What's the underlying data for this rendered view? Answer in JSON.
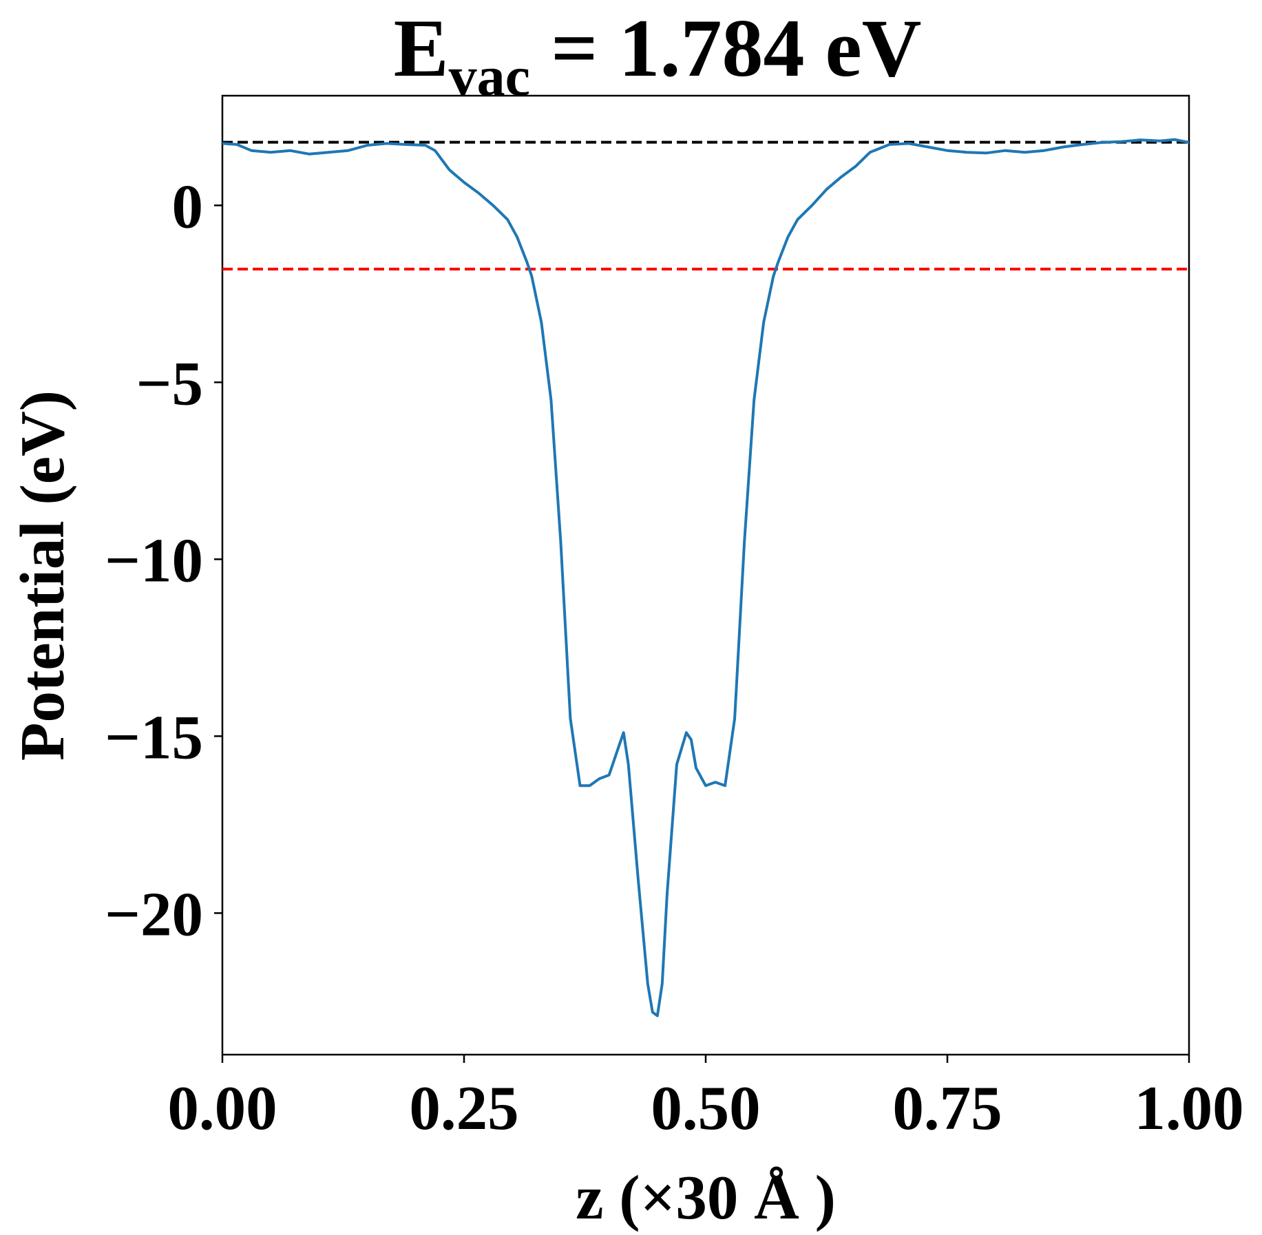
{
  "chart_data": {
    "type": "line",
    "title": {
      "main": "E",
      "subscript": "vac",
      "rest": " = 1.784 eV"
    },
    "xlabel": "z (×30 Å )",
    "ylabel": "Potential (eV)",
    "xlim": [
      0,
      1
    ],
    "ylim": [
      -24.0,
      3.1
    ],
    "x_ticks": [
      0,
      0.25,
      0.5,
      0.75,
      1.0
    ],
    "x_tick_labels": [
      "0.00",
      "0.25",
      "0.50",
      "0.75",
      "1.00"
    ],
    "y_ticks": [
      0,
      -5,
      -10,
      -15,
      -20
    ],
    "y_tick_labels": [
      "0",
      "−5",
      "−10",
      "−15",
      "−20"
    ],
    "grid": false,
    "legend": "none",
    "hlines": [
      {
        "y": 1.784,
        "color": "#000000",
        "style": "dashed"
      },
      {
        "y": -1.8,
        "color": "#ff0000",
        "style": "dashed"
      }
    ],
    "series": [
      {
        "color": "#1f77b4",
        "x": [
          0.0,
          0.015,
          0.03,
          0.05,
          0.07,
          0.09,
          0.11,
          0.13,
          0.15,
          0.17,
          0.19,
          0.21,
          0.22,
          0.235,
          0.25,
          0.265,
          0.28,
          0.295,
          0.305,
          0.315,
          0.32,
          0.33,
          0.34,
          0.35,
          0.36,
          0.37,
          0.38,
          0.39,
          0.4,
          0.41,
          0.415,
          0.42,
          0.43,
          0.44,
          0.445,
          0.45,
          0.455,
          0.46,
          0.47,
          0.48,
          0.485,
          0.49,
          0.5,
          0.51,
          0.52,
          0.53,
          0.54,
          0.55,
          0.56,
          0.57,
          0.575,
          0.585,
          0.595,
          0.61,
          0.625,
          0.64,
          0.655,
          0.67,
          0.69,
          0.71,
          0.73,
          0.75,
          0.77,
          0.79,
          0.81,
          0.83,
          0.85,
          0.87,
          0.89,
          0.91,
          0.93,
          0.95,
          0.97,
          0.985,
          1.0
        ],
        "y": [
          1.75,
          1.72,
          1.55,
          1.5,
          1.55,
          1.45,
          1.5,
          1.55,
          1.7,
          1.75,
          1.72,
          1.7,
          1.55,
          1.0,
          0.65,
          0.35,
          0.0,
          -0.4,
          -0.9,
          -1.6,
          -2.0,
          -3.3,
          -5.5,
          -9.5,
          -14.5,
          -16.4,
          -16.4,
          -16.2,
          -16.1,
          -15.3,
          -14.9,
          -15.8,
          -19.0,
          -22.0,
          -22.8,
          -22.9,
          -22.0,
          -19.5,
          -15.8,
          -14.9,
          -15.1,
          -15.9,
          -16.4,
          -16.3,
          -16.4,
          -14.5,
          -9.5,
          -5.5,
          -3.3,
          -2.0,
          -1.6,
          -0.9,
          -0.4,
          0.0,
          0.45,
          0.8,
          1.1,
          1.5,
          1.72,
          1.75,
          1.65,
          1.55,
          1.5,
          1.48,
          1.55,
          1.5,
          1.55,
          1.65,
          1.72,
          1.78,
          1.8,
          1.85,
          1.82,
          1.86,
          1.78
        ]
      }
    ]
  }
}
